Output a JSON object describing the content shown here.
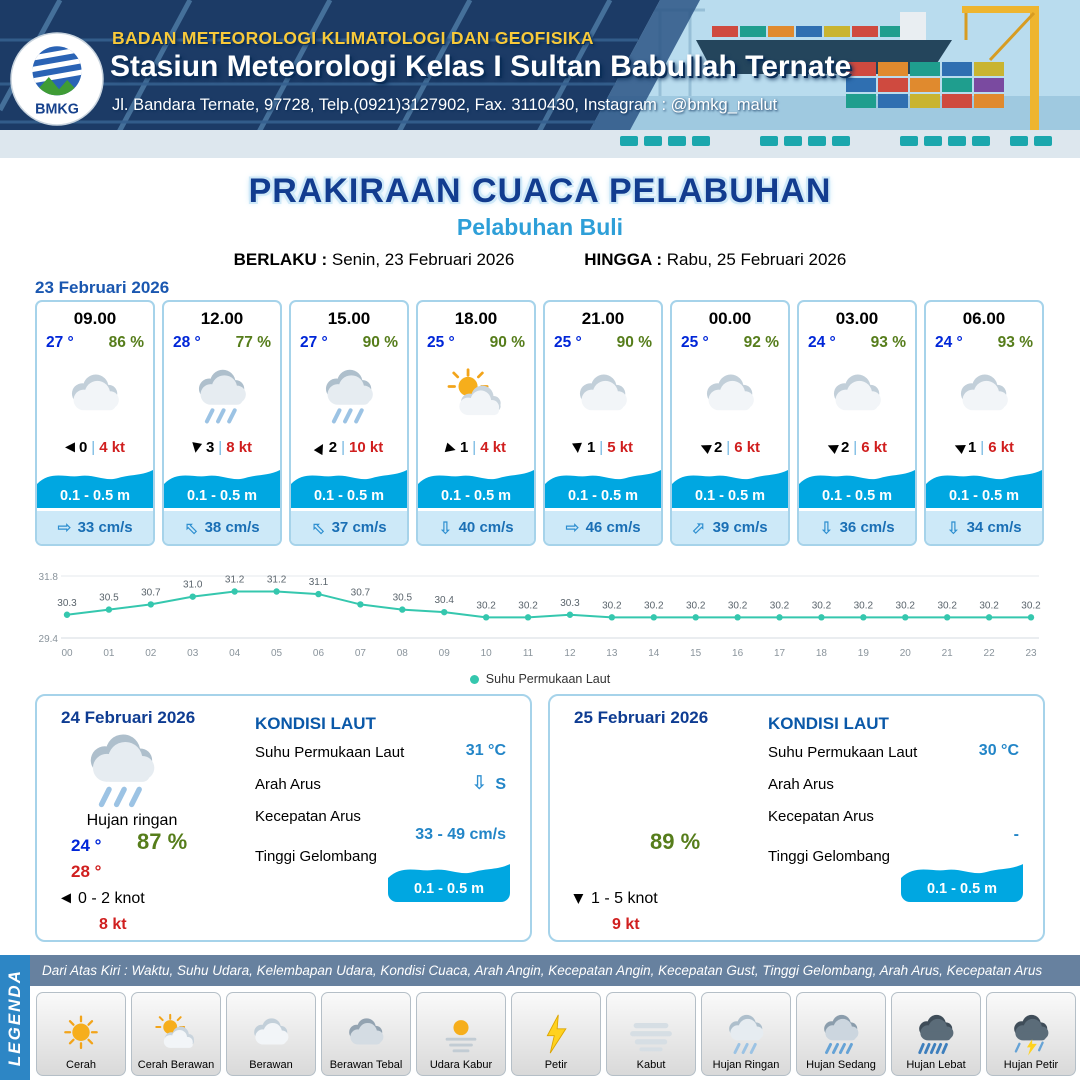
{
  "header": {
    "agency": "BADAN METEOROLOGI KLIMATOLOGI DAN GEOFISIKA",
    "station": "Stasiun Meteorologi Kelas I Sultan Babullah Ternate",
    "address": "Jl. Bandara Ternate, 97728, Telp.(0921)3127902, Fax. 3110430, Instagram : @bmkg_malut",
    "logo_text": "BMKG"
  },
  "title": {
    "main": "PRAKIRAAN CUACA PELABUHAN",
    "sub": "Pelabuhan Buli",
    "berlaku_label": "BERLAKU :",
    "berlaku_value": "Senin, 23 Februari 2026",
    "hingga_label": "HINGGA :",
    "hingga_value": "Rabu, 25 Februari 2026"
  },
  "forecast_date": "23 Februari 2026",
  "glyphs": {
    "wind_arrow": "▶",
    "current_arrow": "⇨",
    "sep": "|"
  },
  "colors": {
    "wave_blue": "#00a7e1",
    "temp_blue": "#0026d8",
    "humidity_green": "#567d1b",
    "speed_red": "#d01f1f",
    "title_navy": "#123c8f",
    "subtitle_blue": "#2e9fd8",
    "sst_line_teal": "#35c7ae"
  },
  "cards": [
    {
      "time": "09.00",
      "temp": "27 °",
      "rh": "86 %",
      "icon": "berawan",
      "icon_href": "#i-berawan",
      "wind_rot": 180,
      "wind_num": "0",
      "wind_speed": "4 kt",
      "wave": "0.1 - 0.5 m",
      "cur_rot": 0,
      "cur_speed": "33 cm/s"
    },
    {
      "time": "12.00",
      "temp": "28 °",
      "rh": "77 %",
      "icon": "hujan-ringan",
      "icon_href": "#i-hujan-ringan",
      "wind_rot": 100,
      "wind_num": "3",
      "wind_speed": "8 kt",
      "wave": "0.1 - 0.5 m",
      "cur_rot": -135,
      "cur_speed": "38 cm/s"
    },
    {
      "time": "15.00",
      "temp": "27 °",
      "rh": "90 %",
      "icon": "hujan-ringan",
      "icon_href": "#i-hujan-ringan",
      "wind_rot": -60,
      "wind_num": "2",
      "wind_speed": "10 kt",
      "wave": "0.1 - 0.5 m",
      "cur_rot": -135,
      "cur_speed": "37 cm/s"
    },
    {
      "time": "18.00",
      "temp": "25 °",
      "rh": "90 %",
      "icon": "cerah-berawan",
      "icon_href": "#i-cerah-berawan",
      "wind_rot": 15,
      "wind_num": "1",
      "wind_speed": "4 kt",
      "wave": "0.1 - 0.5 m",
      "cur_rot": 90,
      "cur_speed": "40 cm/s"
    },
    {
      "time": "21.00",
      "temp": "25 °",
      "rh": "90 %",
      "icon": "berawan",
      "icon_href": "#i-berawan",
      "wind_rot": 85,
      "wind_num": "1",
      "wind_speed": "5 kt",
      "wave": "0.1 - 0.5 m",
      "cur_rot": 0,
      "cur_speed": "46 cm/s"
    },
    {
      "time": "00.00",
      "temp": "25 °",
      "rh": "92 %",
      "icon": "berawan",
      "icon_href": "#i-berawan",
      "wind_rot": 205,
      "wind_num": "2",
      "wind_speed": "6 kt",
      "wave": "0.1 - 0.5 m",
      "cur_rot": -45,
      "cur_speed": "39 cm/s"
    },
    {
      "time": "03.00",
      "temp": "24 °",
      "rh": "93 %",
      "icon": "berawan",
      "icon_href": "#i-berawan",
      "wind_rot": 205,
      "wind_num": "2",
      "wind_speed": "6 kt",
      "wave": "0.1 - 0.5 m",
      "cur_rot": 90,
      "cur_speed": "36 cm/s"
    },
    {
      "time": "06.00",
      "temp": "24 °",
      "rh": "93 %",
      "icon": "berawan",
      "icon_href": "#i-berawan",
      "wind_rot": 205,
      "wind_num": "1",
      "wind_speed": "6 kt",
      "wave": "0.1 - 0.5 m",
      "cur_rot": 90,
      "cur_speed": "34 cm/s"
    }
  ],
  "chart_data": {
    "type": "line",
    "x": [
      "00",
      "01",
      "02",
      "03",
      "04",
      "05",
      "06",
      "07",
      "08",
      "09",
      "10",
      "11",
      "12",
      "13",
      "14",
      "15",
      "16",
      "17",
      "18",
      "19",
      "20",
      "21",
      "22",
      "23"
    ],
    "values": [
      30.3,
      30.5,
      30.7,
      31.0,
      31.2,
      31.2,
      31.1,
      30.7,
      30.5,
      30.4,
      30.2,
      30.2,
      30.3,
      30.2,
      30.2,
      30.2,
      30.2,
      30.2,
      30.2,
      30.2,
      30.2,
      30.2,
      30.2,
      30.2
    ],
    "ylim": [
      29.4,
      31.8
    ],
    "legend": "Suhu Permukaan Laut",
    "line_color": "#35c7ae",
    "grid": "minimal",
    "legend_position": "bottom-center"
  },
  "day_cards": [
    {
      "date": "24 Februari 2026",
      "icon": "hujan-ringan",
      "icon_href": "#i-hujan-ringan",
      "condition": "Hujan ringan",
      "temp_min": "24 °",
      "rh": "87 %",
      "temp_max": "28 °",
      "wind_rot": 180,
      "wind_range": "0 - 2 knot",
      "gust": "8 kt",
      "sea": {
        "heading": "KONDISI LAUT",
        "sst_label": "Suhu Permukaan Laut",
        "sst_value": "31 °C",
        "current_dir_label": "Arah Arus",
        "current_dir_glyph": "⇩",
        "current_dir_text": "S",
        "current_speed_label": "Kecepatan Arus",
        "current_speed_value": "33 - 49 cm/s",
        "wave_label": "Tinggi Gelombang",
        "wave_value": "0.1 - 0.5 m"
      }
    },
    {
      "date": "25 Februari 2026",
      "icon": "",
      "icon_href": "",
      "condition": "",
      "temp_min": "",
      "rh": "89 %",
      "temp_max": "",
      "wind_rot": 90,
      "wind_range": "1 - 5 knot",
      "gust": "9 kt",
      "sea": {
        "heading": "KONDISI LAUT",
        "sst_label": "Suhu Permukaan Laut",
        "sst_value": "30 °C",
        "current_dir_label": "Arah Arus",
        "current_dir_glyph": "",
        "current_dir_text": "",
        "current_speed_label": "Kecepatan Arus",
        "current_speed_value": "-",
        "wave_label": "Tinggi Gelombang",
        "wave_value": "0.1 - 0.5 m"
      }
    }
  ],
  "legend": {
    "title": "LEGENDA",
    "info": "Dari Atas Kiri : Waktu, Suhu Udara, Kelembapan Udara, Kondisi Cuaca, Arah Angin, Kecepatan Angin, Kecepatan Gust, Tinggi Gelombang, Arah Arus, Kecepatan Arus",
    "items": [
      {
        "label": "Cerah",
        "icon": "cerah",
        "icon_href": "#i-cerah"
      },
      {
        "label": "Cerah Berawan",
        "icon": "cerah-berawan",
        "icon_href": "#i-cerah-berawan"
      },
      {
        "label": "Berawan",
        "icon": "berawan",
        "icon_href": "#i-berawan"
      },
      {
        "label": "Berawan Tebal",
        "icon": "berawan-tebal",
        "icon_href": "#i-berawan-tebal"
      },
      {
        "label": "Udara Kabur",
        "icon": "udara-kabur",
        "icon_href": "#i-udara-kabur"
      },
      {
        "label": "Petir",
        "icon": "petir",
        "icon_href": "#i-petir"
      },
      {
        "label": "Kabut",
        "icon": "kabut",
        "icon_href": "#i-kabut"
      },
      {
        "label": "Hujan Ringan",
        "icon": "hujan-ringan",
        "icon_href": "#i-hujan-ringan"
      },
      {
        "label": "Hujan Sedang",
        "icon": "hujan-sedang",
        "icon_href": "#i-hujan-sedang"
      },
      {
        "label": "Hujan Lebat",
        "icon": "hujan-lebat",
        "icon_href": "#i-hujan-lebat"
      },
      {
        "label": "Hujan Petir",
        "icon": "hujan-petir",
        "icon_href": "#i-hujan-petir"
      }
    ]
  }
}
